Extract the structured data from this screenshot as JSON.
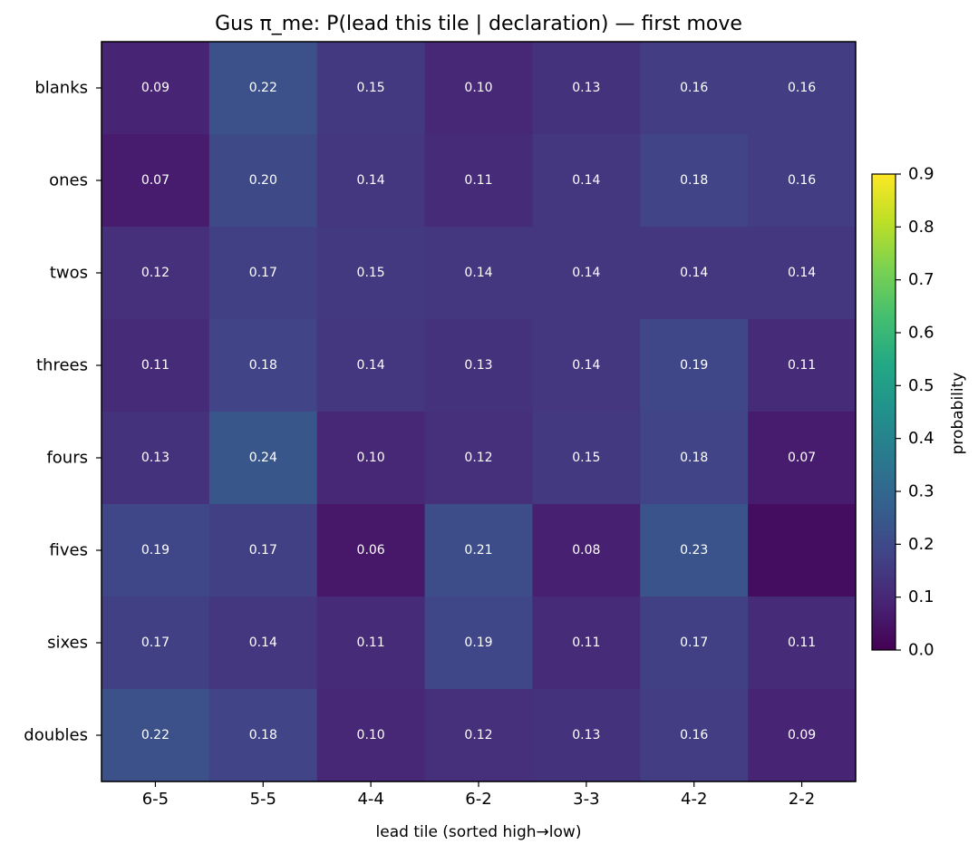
{
  "chart_data": {
    "type": "heatmap",
    "title": "Gus π_me: P(lead this tile | declaration) — first move",
    "xlabel": "lead tile (sorted high→low)",
    "ylabel": "",
    "x_categories": [
      "6-5",
      "5-5",
      "4-4",
      "6-2",
      "3-3",
      "4-2",
      "2-2"
    ],
    "y_categories": [
      "blanks",
      "ones",
      "twos",
      "threes",
      "fours",
      "fives",
      "sixes",
      "doubles"
    ],
    "values": [
      [
        0.09,
        0.22,
        0.15,
        0.1,
        0.13,
        0.16,
        0.16
      ],
      [
        0.07,
        0.2,
        0.14,
        0.11,
        0.14,
        0.18,
        0.16
      ],
      [
        0.12,
        0.17,
        0.15,
        0.14,
        0.14,
        0.14,
        0.14
      ],
      [
        0.11,
        0.18,
        0.14,
        0.13,
        0.14,
        0.19,
        0.11
      ],
      [
        0.13,
        0.24,
        0.1,
        0.12,
        0.15,
        0.18,
        0.07
      ],
      [
        0.19,
        0.17,
        0.06,
        0.21,
        0.08,
        0.23,
        0.03
      ],
      [
        0.17,
        0.14,
        0.11,
        0.19,
        0.11,
        0.17,
        0.11
      ],
      [
        0.22,
        0.18,
        0.1,
        0.12,
        0.13,
        0.16,
        0.09
      ]
    ],
    "value_labels": [
      [
        "0.09",
        "0.22",
        "0.15",
        "0.10",
        "0.13",
        "0.16",
        "0.16"
      ],
      [
        "0.07",
        "0.20",
        "0.14",
        "0.11",
        "0.14",
        "0.18",
        "0.16"
      ],
      [
        "0.12",
        "0.17",
        "0.15",
        "0.14",
        "0.14",
        "0.14",
        "0.14"
      ],
      [
        "0.11",
        "0.18",
        "0.14",
        "0.13",
        "0.14",
        "0.19",
        "0.11"
      ],
      [
        "0.13",
        "0.24",
        "0.10",
        "0.12",
        "0.15",
        "0.18",
        "0.07"
      ],
      [
        "0.19",
        "0.17",
        "0.06",
        "0.21",
        "0.08",
        "0.23",
        ""
      ],
      [
        "0.17",
        "0.14",
        "0.11",
        "0.19",
        "0.11",
        "0.17",
        "0.11"
      ],
      [
        "0.22",
        "0.18",
        "0.10",
        "0.12",
        "0.13",
        "0.16",
        "0.09"
      ]
    ],
    "colormap": "viridis",
    "colorbar": {
      "label": "probability",
      "vmin": 0.0,
      "vmax": 0.9,
      "ticks": [
        "0.0",
        "0.1",
        "0.2",
        "0.3",
        "0.4",
        "0.5",
        "0.6",
        "0.7",
        "0.8",
        "0.9"
      ]
    },
    "grid": false,
    "legend": "none"
  }
}
